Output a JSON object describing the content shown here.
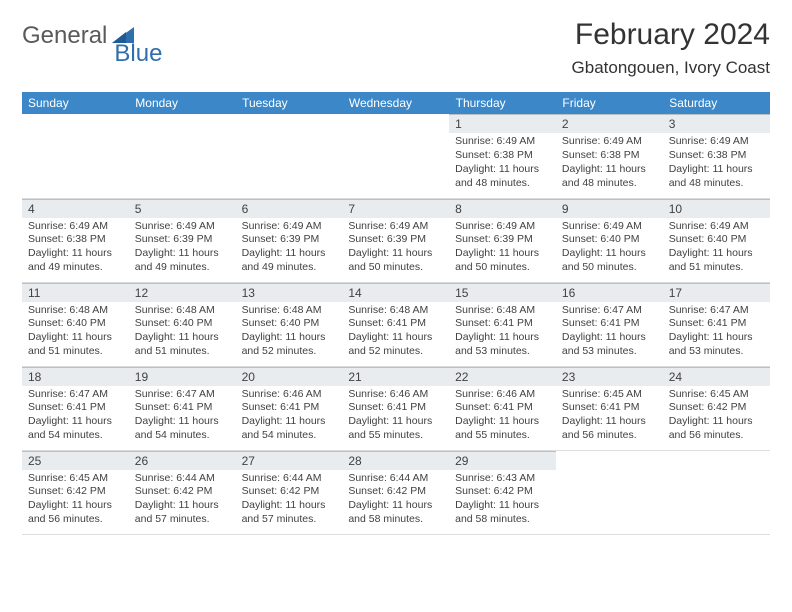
{
  "logo": {
    "part1": "General",
    "part2": "Blue"
  },
  "title": "February 2024",
  "location": "Gbatongouen, Ivory Coast",
  "colors": {
    "header_bg": "#3b87c8",
    "header_text": "#ffffff",
    "daynum_bg": "#e9ecef",
    "daynum_border": "#b9bfc4",
    "text": "#414141",
    "logo_gray": "#5a5a5a",
    "logo_blue": "#2f6fad"
  },
  "day_headers": [
    "Sunday",
    "Monday",
    "Tuesday",
    "Wednesday",
    "Thursday",
    "Friday",
    "Saturday"
  ],
  "weeks": [
    [
      {
        "empty": true
      },
      {
        "empty": true
      },
      {
        "empty": true
      },
      {
        "empty": true
      },
      {
        "day": "1",
        "sunrise": "Sunrise: 6:49 AM",
        "sunset": "Sunset: 6:38 PM",
        "daylight": "Daylight: 11 hours and 48 minutes."
      },
      {
        "day": "2",
        "sunrise": "Sunrise: 6:49 AM",
        "sunset": "Sunset: 6:38 PM",
        "daylight": "Daylight: 11 hours and 48 minutes."
      },
      {
        "day": "3",
        "sunrise": "Sunrise: 6:49 AM",
        "sunset": "Sunset: 6:38 PM",
        "daylight": "Daylight: 11 hours and 48 minutes."
      }
    ],
    [
      {
        "day": "4",
        "sunrise": "Sunrise: 6:49 AM",
        "sunset": "Sunset: 6:38 PM",
        "daylight": "Daylight: 11 hours and 49 minutes."
      },
      {
        "day": "5",
        "sunrise": "Sunrise: 6:49 AM",
        "sunset": "Sunset: 6:39 PM",
        "daylight": "Daylight: 11 hours and 49 minutes."
      },
      {
        "day": "6",
        "sunrise": "Sunrise: 6:49 AM",
        "sunset": "Sunset: 6:39 PM",
        "daylight": "Daylight: 11 hours and 49 minutes."
      },
      {
        "day": "7",
        "sunrise": "Sunrise: 6:49 AM",
        "sunset": "Sunset: 6:39 PM",
        "daylight": "Daylight: 11 hours and 50 minutes."
      },
      {
        "day": "8",
        "sunrise": "Sunrise: 6:49 AM",
        "sunset": "Sunset: 6:39 PM",
        "daylight": "Daylight: 11 hours and 50 minutes."
      },
      {
        "day": "9",
        "sunrise": "Sunrise: 6:49 AM",
        "sunset": "Sunset: 6:40 PM",
        "daylight": "Daylight: 11 hours and 50 minutes."
      },
      {
        "day": "10",
        "sunrise": "Sunrise: 6:49 AM",
        "sunset": "Sunset: 6:40 PM",
        "daylight": "Daylight: 11 hours and 51 minutes."
      }
    ],
    [
      {
        "day": "11",
        "sunrise": "Sunrise: 6:48 AM",
        "sunset": "Sunset: 6:40 PM",
        "daylight": "Daylight: 11 hours and 51 minutes."
      },
      {
        "day": "12",
        "sunrise": "Sunrise: 6:48 AM",
        "sunset": "Sunset: 6:40 PM",
        "daylight": "Daylight: 11 hours and 51 minutes."
      },
      {
        "day": "13",
        "sunrise": "Sunrise: 6:48 AM",
        "sunset": "Sunset: 6:40 PM",
        "daylight": "Daylight: 11 hours and 52 minutes."
      },
      {
        "day": "14",
        "sunrise": "Sunrise: 6:48 AM",
        "sunset": "Sunset: 6:41 PM",
        "daylight": "Daylight: 11 hours and 52 minutes."
      },
      {
        "day": "15",
        "sunrise": "Sunrise: 6:48 AM",
        "sunset": "Sunset: 6:41 PM",
        "daylight": "Daylight: 11 hours and 53 minutes."
      },
      {
        "day": "16",
        "sunrise": "Sunrise: 6:47 AM",
        "sunset": "Sunset: 6:41 PM",
        "daylight": "Daylight: 11 hours and 53 minutes."
      },
      {
        "day": "17",
        "sunrise": "Sunrise: 6:47 AM",
        "sunset": "Sunset: 6:41 PM",
        "daylight": "Daylight: 11 hours and 53 minutes."
      }
    ],
    [
      {
        "day": "18",
        "sunrise": "Sunrise: 6:47 AM",
        "sunset": "Sunset: 6:41 PM",
        "daylight": "Daylight: 11 hours and 54 minutes."
      },
      {
        "day": "19",
        "sunrise": "Sunrise: 6:47 AM",
        "sunset": "Sunset: 6:41 PM",
        "daylight": "Daylight: 11 hours and 54 minutes."
      },
      {
        "day": "20",
        "sunrise": "Sunrise: 6:46 AM",
        "sunset": "Sunset: 6:41 PM",
        "daylight": "Daylight: 11 hours and 54 minutes."
      },
      {
        "day": "21",
        "sunrise": "Sunrise: 6:46 AM",
        "sunset": "Sunset: 6:41 PM",
        "daylight": "Daylight: 11 hours and 55 minutes."
      },
      {
        "day": "22",
        "sunrise": "Sunrise: 6:46 AM",
        "sunset": "Sunset: 6:41 PM",
        "daylight": "Daylight: 11 hours and 55 minutes."
      },
      {
        "day": "23",
        "sunrise": "Sunrise: 6:45 AM",
        "sunset": "Sunset: 6:41 PM",
        "daylight": "Daylight: 11 hours and 56 minutes."
      },
      {
        "day": "24",
        "sunrise": "Sunrise: 6:45 AM",
        "sunset": "Sunset: 6:42 PM",
        "daylight": "Daylight: 11 hours and 56 minutes."
      }
    ],
    [
      {
        "day": "25",
        "sunrise": "Sunrise: 6:45 AM",
        "sunset": "Sunset: 6:42 PM",
        "daylight": "Daylight: 11 hours and 56 minutes."
      },
      {
        "day": "26",
        "sunrise": "Sunrise: 6:44 AM",
        "sunset": "Sunset: 6:42 PM",
        "daylight": "Daylight: 11 hours and 57 minutes."
      },
      {
        "day": "27",
        "sunrise": "Sunrise: 6:44 AM",
        "sunset": "Sunset: 6:42 PM",
        "daylight": "Daylight: 11 hours and 57 minutes."
      },
      {
        "day": "28",
        "sunrise": "Sunrise: 6:44 AM",
        "sunset": "Sunset: 6:42 PM",
        "daylight": "Daylight: 11 hours and 58 minutes."
      },
      {
        "day": "29",
        "sunrise": "Sunrise: 6:43 AM",
        "sunset": "Sunset: 6:42 PM",
        "daylight": "Daylight: 11 hours and 58 minutes."
      },
      {
        "empty": true
      },
      {
        "empty": true
      }
    ]
  ]
}
